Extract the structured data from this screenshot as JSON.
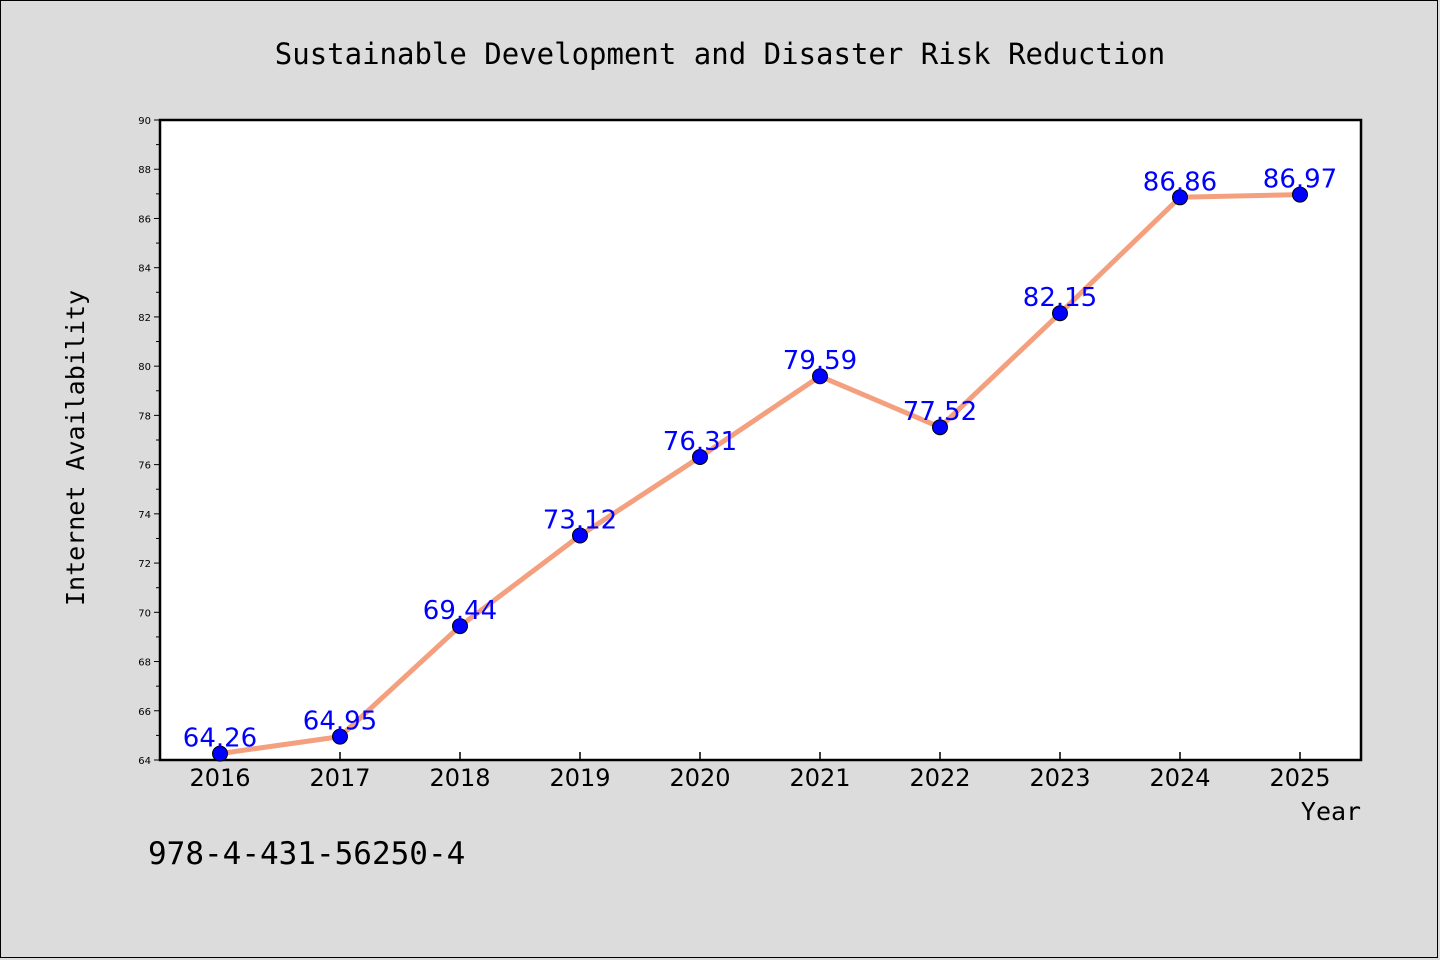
{
  "chart_data": {
    "type": "line",
    "title": "Sustainable Development and Disaster Risk Reduction",
    "xlabel": "Year",
    "ylabel": "Internet Availability",
    "categories": [
      "2016",
      "2017",
      "2018",
      "2019",
      "2020",
      "2021",
      "2022",
      "2023",
      "2024",
      "2025"
    ],
    "series": [
      {
        "values": [
          64.26,
          64.95,
          69.44,
          73.12,
          76.31,
          79.59,
          77.52,
          82.15,
          86.86,
          86.97
        ]
      }
    ],
    "data_labels": [
      "64.26",
      "64.95",
      "69.44",
      "73.12",
      "76.31",
      "79.59",
      "77.52",
      "82.15",
      "86.86",
      "86.97"
    ],
    "ylim": [
      64,
      90
    ],
    "yticks": [
      64,
      66,
      68,
      70,
      72,
      74,
      76,
      78,
      80,
      82,
      84,
      86,
      88,
      90
    ],
    "grid": false,
    "legend": "none",
    "colors": {
      "line": "#f4a07e",
      "marker": "#0000ff",
      "label": "#0000ff",
      "plot_bg": "#ffffff",
      "figure_bg": "#dcdcdc"
    }
  },
  "footer": {
    "isbn": "978-4-431-56250-4"
  }
}
